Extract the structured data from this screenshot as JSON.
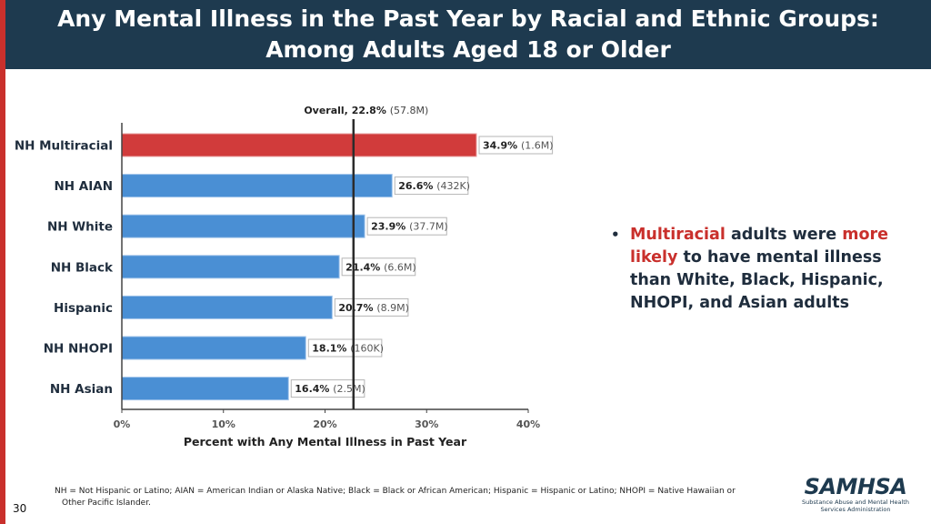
{
  "slide": {
    "title_line1": "Any Mental Illness in the Past Year by Racial and Ethnic Groups:",
    "title_line2": "Among Adults Aged 18 or Older",
    "page_number": "30"
  },
  "bullet": {
    "accent1": "Multiracial",
    "text1": " adults were ",
    "accent2": "more likely",
    "text2": " to have mental illness than White, Black, Hispanic, NHOPI, and Asian adults"
  },
  "footnote": {
    "line1": "NH = Not Hispanic or Latino; AIAN = American Indian or Alaska Native; Black = Black or African American; Hispanic = Hispanic or Latino; NHOPI = Native Hawaiian or",
    "line2": "Other Pacific Islander."
  },
  "logo": {
    "name": "SAMHSA",
    "sub1": "Substance Abuse and Mental Health",
    "sub2": "Services Administration"
  },
  "colors": {
    "bar": "#4a8fd4",
    "highlight": "#d13b3b",
    "header": "#1e3a4f",
    "accent": "#c9302c"
  },
  "chart_data": {
    "type": "bar",
    "orientation": "horizontal",
    "xlabel": "Percent with Any Mental Illness in Past Year",
    "xlim": [
      0,
      40
    ],
    "xticks": [
      0,
      10,
      20,
      30,
      40
    ],
    "xtick_labels": [
      "0%",
      "10%",
      "20%",
      "30%",
      "40%"
    ],
    "reference_line": {
      "value": 22.8,
      "label": "Overall, 22.8%",
      "sublabel": "(57.8M)"
    },
    "categories": [
      "NH Multiracial",
      "NH AIAN",
      "NH White",
      "NH Black",
      "Hispanic",
      "NH NHOPI",
      "NH Asian"
    ],
    "values": [
      34.9,
      26.6,
      23.9,
      21.4,
      20.7,
      18.1,
      16.4
    ],
    "value_labels": [
      "34.9%",
      "26.6%",
      "23.9%",
      "21.4%",
      "20.7%",
      "18.1%",
      "16.4%"
    ],
    "counts": [
      "(1.6M)",
      "(432K)",
      "(37.7M)",
      "(6.6M)",
      "(8.9M)",
      "(160K)",
      "(2.5M)"
    ],
    "highlight_index": 0
  }
}
